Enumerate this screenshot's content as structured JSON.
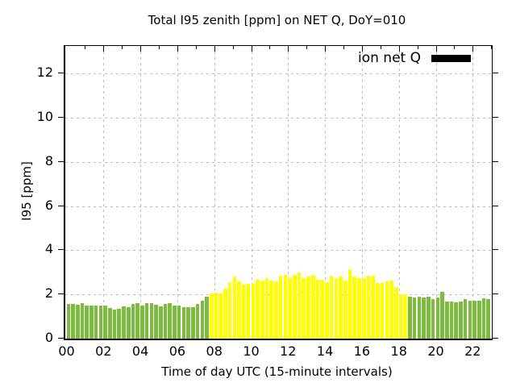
{
  "chart_data": {
    "type": "bar",
    "title": "Total I95 zenith [ppm] on NET Q, DoY=010",
    "xlabel": "Time of day UTC (15-minute intervals)",
    "ylabel": "I95 [ppm]",
    "legend": {
      "label": "ion net Q",
      "swatch_color": "#000000",
      "position": "top-right"
    },
    "grid": "dashed-gray",
    "grid_color": "#bcbcbc",
    "interval_minutes": 15,
    "x_tick_labels": [
      "00",
      "02",
      "04",
      "06",
      "08",
      "10",
      "12",
      "14",
      "16",
      "18",
      "20",
      "22"
    ],
    "x_tick_hours": [
      0,
      2,
      4,
      6,
      8,
      10,
      12,
      14,
      16,
      18,
      20,
      22
    ],
    "y_ticks": [
      0,
      2,
      4,
      6,
      8,
      10,
      12
    ],
    "xlim_hours": [
      0,
      23.1
    ],
    "ylim": [
      0,
      13.25
    ],
    "colors": {
      "night": "#7cbb3e",
      "day": "#ffff00"
    },
    "bars": [
      [
        "00:00",
        1.57,
        "night"
      ],
      [
        "00:15",
        1.57,
        "night"
      ],
      [
        "00:30",
        1.53,
        "night"
      ],
      [
        "00:45",
        1.6,
        "night"
      ],
      [
        "01:00",
        1.48,
        "night"
      ],
      [
        "01:15",
        1.48,
        "night"
      ],
      [
        "01:30",
        1.48,
        "night"
      ],
      [
        "01:45",
        1.48,
        "night"
      ],
      [
        "02:00",
        1.48,
        "night"
      ],
      [
        "02:15",
        1.39,
        "night"
      ],
      [
        "02:30",
        1.32,
        "night"
      ],
      [
        "02:45",
        1.36,
        "night"
      ],
      [
        "03:00",
        1.45,
        "night"
      ],
      [
        "03:15",
        1.41,
        "night"
      ],
      [
        "03:30",
        1.57,
        "night"
      ],
      [
        "03:45",
        1.59,
        "night"
      ],
      [
        "04:00",
        1.51,
        "night"
      ],
      [
        "04:15",
        1.59,
        "night"
      ],
      [
        "04:30",
        1.62,
        "night"
      ],
      [
        "04:45",
        1.53,
        "night"
      ],
      [
        "05:00",
        1.45,
        "night"
      ],
      [
        "05:15",
        1.57,
        "night"
      ],
      [
        "05:30",
        1.59,
        "night"
      ],
      [
        "05:45",
        1.51,
        "night"
      ],
      [
        "06:00",
        1.48,
        "night"
      ],
      [
        "06:15",
        1.41,
        "night"
      ],
      [
        "06:30",
        1.41,
        "night"
      ],
      [
        "06:45",
        1.42,
        "night"
      ],
      [
        "07:00",
        1.57,
        "night"
      ],
      [
        "07:15",
        1.73,
        "night"
      ],
      [
        "07:30",
        1.9,
        "night"
      ],
      [
        "07:45",
        2.05,
        "day"
      ],
      [
        "08:00",
        2.08,
        "day"
      ],
      [
        "08:15",
        2.05,
        "day"
      ],
      [
        "08:30",
        2.25,
        "day"
      ],
      [
        "08:45",
        2.55,
        "day"
      ],
      [
        "09:00",
        2.8,
        "day"
      ],
      [
        "09:15",
        2.6,
        "day"
      ],
      [
        "09:30",
        2.45,
        "day"
      ],
      [
        "09:45",
        2.48,
        "day"
      ],
      [
        "10:00",
        2.48,
        "day"
      ],
      [
        "10:15",
        2.65,
        "day"
      ],
      [
        "10:30",
        2.64,
        "day"
      ],
      [
        "10:45",
        2.72,
        "day"
      ],
      [
        "11:00",
        2.62,
        "day"
      ],
      [
        "11:15",
        2.6,
        "day"
      ],
      [
        "11:30",
        2.85,
        "day"
      ],
      [
        "11:45",
        2.88,
        "day"
      ],
      [
        "12:00",
        2.75,
        "day"
      ],
      [
        "12:15",
        2.88,
        "day"
      ],
      [
        "12:30",
        3.0,
        "day"
      ],
      [
        "12:45",
        2.72,
        "day"
      ],
      [
        "13:00",
        2.8,
        "day"
      ],
      [
        "13:15",
        2.88,
        "day"
      ],
      [
        "13:30",
        2.66,
        "day"
      ],
      [
        "13:45",
        2.66,
        "day"
      ],
      [
        "14:00",
        2.57,
        "day"
      ],
      [
        "14:15",
        2.85,
        "day"
      ],
      [
        "14:30",
        2.72,
        "day"
      ],
      [
        "14:45",
        2.8,
        "day"
      ],
      [
        "15:00",
        2.63,
        "day"
      ],
      [
        "15:15",
        3.15,
        "day"
      ],
      [
        "15:30",
        2.82,
        "day"
      ],
      [
        "15:45",
        2.75,
        "day"
      ],
      [
        "16:00",
        2.75,
        "day"
      ],
      [
        "16:15",
        2.85,
        "day"
      ],
      [
        "16:30",
        2.85,
        "day"
      ],
      [
        "16:45",
        2.52,
        "day"
      ],
      [
        "17:00",
        2.52,
        "day"
      ],
      [
        "17:15",
        2.6,
        "day"
      ],
      [
        "17:30",
        2.64,
        "day"
      ],
      [
        "17:45",
        2.32,
        "day"
      ],
      [
        "18:00",
        2.02,
        "day"
      ],
      [
        "18:15",
        2.02,
        "day"
      ],
      [
        "18:30",
        1.91,
        "night"
      ],
      [
        "18:45",
        1.86,
        "night"
      ],
      [
        "19:00",
        1.91,
        "night"
      ],
      [
        "19:15",
        1.86,
        "night"
      ],
      [
        "19:30",
        1.91,
        "night"
      ],
      [
        "19:45",
        1.8,
        "night"
      ],
      [
        "20:00",
        1.85,
        "night"
      ],
      [
        "20:15",
        2.1,
        "night"
      ],
      [
        "20:30",
        1.69,
        "night"
      ],
      [
        "20:45",
        1.69,
        "night"
      ],
      [
        "21:00",
        1.63,
        "night"
      ],
      [
        "21:15",
        1.69,
        "night"
      ],
      [
        "21:30",
        1.78,
        "night"
      ],
      [
        "21:45",
        1.72,
        "night"
      ],
      [
        "22:00",
        1.72,
        "night"
      ],
      [
        "22:15",
        1.72,
        "night"
      ],
      [
        "22:30",
        1.81,
        "night"
      ],
      [
        "22:45",
        1.78,
        "night"
      ]
    ]
  }
}
